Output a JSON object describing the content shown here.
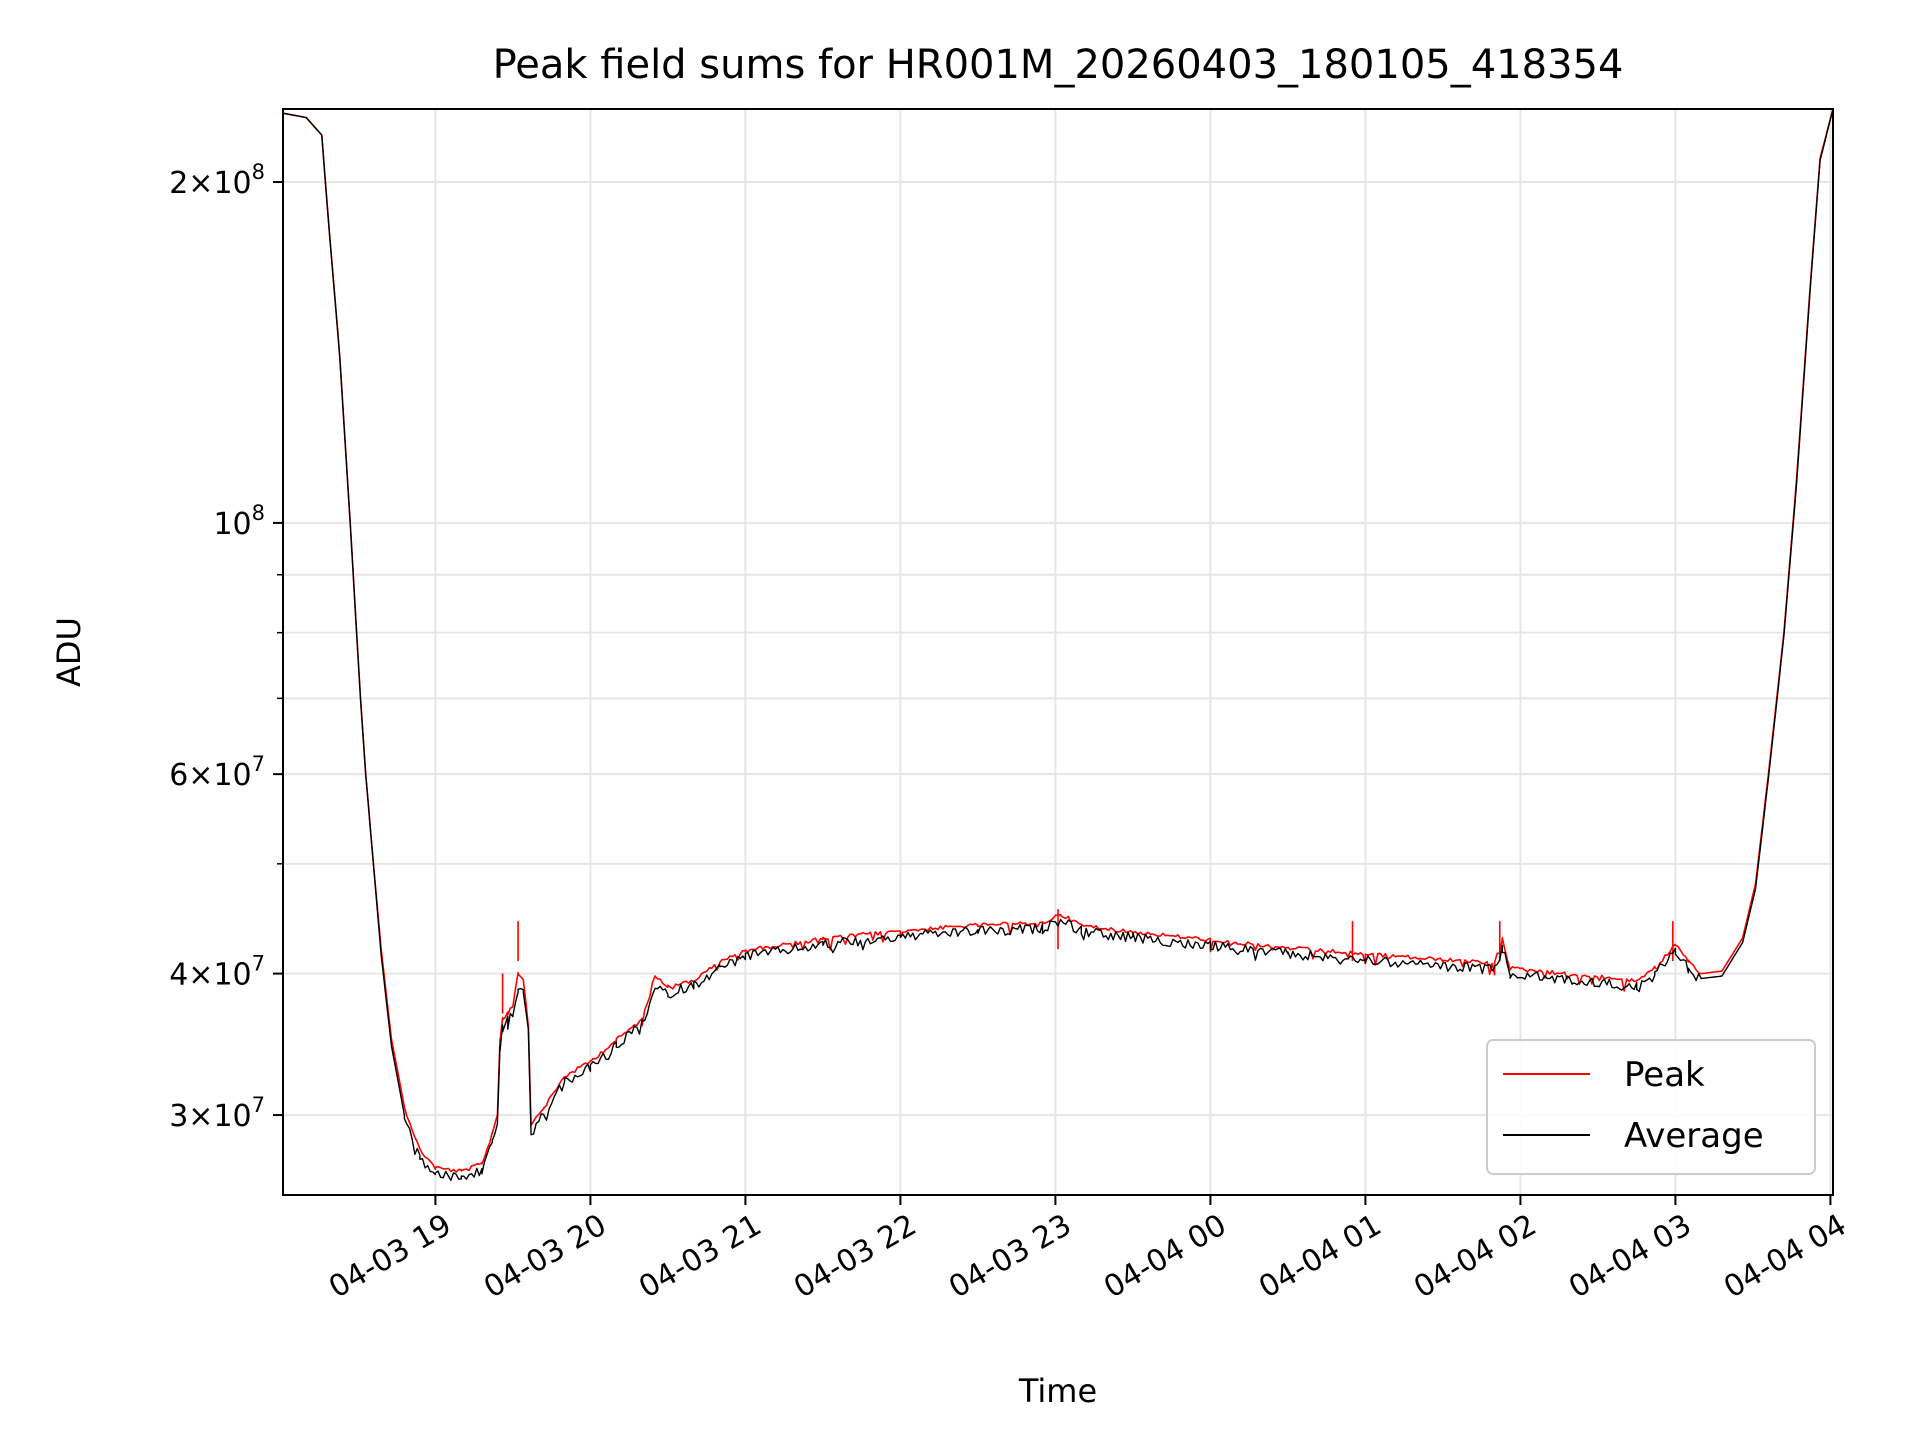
{
  "chart_data": {
    "type": "line",
    "title": "Peak field sums for HR001M_20260403_180105_418354",
    "xlabel": "Time",
    "ylabel": "ADU",
    "yscale": "log",
    "grid": true,
    "legend_position": "lower-right",
    "xlim": [
      "2026-04-03 18:01",
      "2026-04-04 04:01"
    ],
    "ylim": [
      25500000,
      232000000
    ],
    "x_ticks": [
      {
        "t": "2026-04-03 19:00",
        "label": "04-03 19"
      },
      {
        "t": "2026-04-03 20:00",
        "label": "04-03 20"
      },
      {
        "t": "2026-04-03 21:00",
        "label": "04-03 21"
      },
      {
        "t": "2026-04-03 22:00",
        "label": "04-03 22"
      },
      {
        "t": "2026-04-03 23:00",
        "label": "04-03 23"
      },
      {
        "t": "2026-04-04 00:00",
        "label": "04-04 00"
      },
      {
        "t": "2026-04-04 01:00",
        "label": "04-04 01"
      },
      {
        "t": "2026-04-04 02:00",
        "label": "04-04 02"
      },
      {
        "t": "2026-04-04 03:00",
        "label": "04-04 03"
      },
      {
        "t": "2026-04-04 04:00",
        "label": "04-04 04"
      }
    ],
    "y_major_ticks": [
      {
        "v": 30000000,
        "base": "3×10",
        "exp": "7"
      },
      {
        "v": 40000000,
        "base": "4×10",
        "exp": "7"
      },
      {
        "v": 60000000,
        "base": "6×10",
        "exp": "7"
      },
      {
        "v": 100000000,
        "base": "10",
        "exp": "8"
      },
      {
        "v": 200000000,
        "base": "2×10",
        "exp": "8"
      }
    ],
    "y_minor_ticks": [
      50000000,
      70000000,
      80000000,
      90000000
    ],
    "series": [
      {
        "name": "Peak",
        "color": "#ff0000",
        "points": [
          [
            "2026-04-03 18:01",
            230000000
          ],
          [
            "2026-04-03 18:10",
            228000000
          ],
          [
            "2026-04-03 18:16",
            220000000
          ],
          [
            "2026-04-03 18:19",
            180000000
          ],
          [
            "2026-04-03 18:23",
            140000000
          ],
          [
            "2026-04-03 18:27",
            100000000
          ],
          [
            "2026-04-03 18:31",
            70000000
          ],
          [
            "2026-04-03 18:33",
            60000000
          ],
          [
            "2026-04-03 18:36",
            50000000
          ],
          [
            "2026-04-03 18:39",
            42000000
          ],
          [
            "2026-04-03 18:43",
            35000000
          ],
          [
            "2026-04-03 18:48",
            30500000
          ],
          [
            "2026-04-03 18:54",
            28000000
          ],
          [
            "2026-04-03 19:00",
            27000000
          ],
          [
            "2026-04-03 19:10",
            26800000
          ],
          [
            "2026-04-03 19:18",
            27200000
          ],
          [
            "2026-04-03 19:22",
            29000000
          ],
          [
            "2026-04-03 19:24",
            30000000
          ],
          [
            "2026-04-03 19:25",
            35000000
          ],
          [
            "2026-04-03 19:26",
            36500000
          ],
          [
            "2026-04-03 19:28",
            37000000
          ],
          [
            "2026-04-03 19:30",
            37500000
          ],
          [
            "2026-04-03 19:32",
            40000000
          ],
          [
            "2026-04-03 19:34",
            39500000
          ],
          [
            "2026-04-03 19:36",
            36000000
          ],
          [
            "2026-04-03 19:37",
            29500000
          ],
          [
            "2026-04-03 19:42",
            30500000
          ],
          [
            "2026-04-03 19:50",
            32500000
          ],
          [
            "2026-04-03 20:00",
            33500000
          ],
          [
            "2026-04-03 20:10",
            35000000
          ],
          [
            "2026-04-03 20:20",
            36500000
          ],
          [
            "2026-04-03 20:25",
            40000000
          ],
          [
            "2026-04-03 20:30",
            39000000
          ],
          [
            "2026-04-03 20:40",
            39500000
          ],
          [
            "2026-04-03 20:50",
            41000000
          ],
          [
            "2026-04-03 21:00",
            42000000
          ],
          [
            "2026-04-03 21:30",
            43000000
          ],
          [
            "2026-04-03 22:00",
            43700000
          ],
          [
            "2026-04-03 22:30",
            44200000
          ],
          [
            "2026-04-03 22:55",
            44400000
          ],
          [
            "2026-04-03 23:02",
            45200000
          ],
          [
            "2026-04-03 23:10",
            44200000
          ],
          [
            "2026-04-03 23:30",
            43600000
          ],
          [
            "2026-04-04 00:00",
            42900000
          ],
          [
            "2026-04-04 00:30",
            42200000
          ],
          [
            "2026-04-04 01:00",
            41700000
          ],
          [
            "2026-04-04 01:30",
            41200000
          ],
          [
            "2026-04-04 01:50",
            40900000
          ],
          [
            "2026-04-04 01:53",
            43000000
          ],
          [
            "2026-04-04 01:56",
            40500000
          ],
          [
            "2026-04-04 02:20",
            40000000
          ],
          [
            "2026-04-04 02:45",
            39500000
          ],
          [
            "2026-04-04 02:52",
            40500000
          ],
          [
            "2026-04-04 03:00",
            42500000
          ],
          [
            "2026-04-04 03:05",
            41000000
          ],
          [
            "2026-04-04 03:10",
            40000000
          ],
          [
            "2026-04-04 03:18",
            40200000
          ],
          [
            "2026-04-04 03:26",
            43000000
          ],
          [
            "2026-04-04 03:31",
            48000000
          ],
          [
            "2026-04-04 03:36",
            60000000
          ],
          [
            "2026-04-04 03:42",
            80000000
          ],
          [
            "2026-04-04 03:47",
            110000000
          ],
          [
            "2026-04-04 03:52",
            160000000
          ],
          [
            "2026-04-04 03:56",
            210000000
          ],
          [
            "2026-04-04 04:01",
            232000000
          ]
        ],
        "spikes": [
          [
            "2026-04-03 19:32",
            44500000
          ],
          [
            "2026-04-03 19:26",
            40000000
          ],
          [
            "2026-04-03 23:01",
            45600000
          ],
          [
            "2026-04-04 00:55",
            44500000
          ],
          [
            "2026-04-04 01:52",
            44500000
          ],
          [
            "2026-04-04 02:59",
            44500000
          ]
        ]
      },
      {
        "name": "Average",
        "color": "#000000",
        "points": [
          [
            "2026-04-03 18:01",
            230000000
          ],
          [
            "2026-04-03 18:10",
            228000000
          ],
          [
            "2026-04-03 18:16",
            220000000
          ],
          [
            "2026-04-03 18:19",
            180000000
          ],
          [
            "2026-04-03 18:23",
            140000000
          ],
          [
            "2026-04-03 18:27",
            100000000
          ],
          [
            "2026-04-03 18:31",
            70000000
          ],
          [
            "2026-04-03 18:33",
            60000000
          ],
          [
            "2026-04-03 18:36",
            50000000
          ],
          [
            "2026-04-03 18:39",
            41500000
          ],
          [
            "2026-04-03 18:43",
            34500000
          ],
          [
            "2026-04-03 18:48",
            30000000
          ],
          [
            "2026-04-03 18:54",
            27600000
          ],
          [
            "2026-04-03 19:00",
            26700000
          ],
          [
            "2026-04-03 19:10",
            26500000
          ],
          [
            "2026-04-03 19:18",
            26900000
          ],
          [
            "2026-04-03 19:22",
            28500000
          ],
          [
            "2026-04-03 19:24",
            29500000
          ],
          [
            "2026-04-03 19:25",
            34500000
          ],
          [
            "2026-04-03 19:26",
            36000000
          ],
          [
            "2026-04-03 19:28",
            36500000
          ],
          [
            "2026-04-03 19:30",
            37000000
          ],
          [
            "2026-04-03 19:32",
            39000000
          ],
          [
            "2026-04-03 19:34",
            38800000
          ],
          [
            "2026-04-03 19:36",
            35500000
          ],
          [
            "2026-04-03 19:37",
            29000000
          ],
          [
            "2026-04-03 19:42",
            30200000
          ],
          [
            "2026-04-03 19:50",
            32200000
          ],
          [
            "2026-04-03 20:00",
            33200000
          ],
          [
            "2026-04-03 20:10",
            34700000
          ],
          [
            "2026-04-03 20:20",
            36200000
          ],
          [
            "2026-04-03 20:25",
            39000000
          ],
          [
            "2026-04-03 20:30",
            38600000
          ],
          [
            "2026-04-03 20:40",
            39200000
          ],
          [
            "2026-04-03 20:50",
            40600000
          ],
          [
            "2026-04-03 21:00",
            41600000
          ],
          [
            "2026-04-03 21:30",
            42600000
          ],
          [
            "2026-04-03 22:00",
            43300000
          ],
          [
            "2026-04-03 22:30",
            43800000
          ],
          [
            "2026-04-03 22:55",
            44000000
          ],
          [
            "2026-04-03 23:02",
            44800000
          ],
          [
            "2026-04-03 23:10",
            43800000
          ],
          [
            "2026-04-03 23:30",
            43200000
          ],
          [
            "2026-04-04 00:00",
            42500000
          ],
          [
            "2026-04-04 00:30",
            41800000
          ],
          [
            "2026-04-04 01:00",
            41300000
          ],
          [
            "2026-04-04 01:30",
            40800000
          ],
          [
            "2026-04-04 01:50",
            40500000
          ],
          [
            "2026-04-04 01:53",
            42200000
          ],
          [
            "2026-04-04 01:56",
            40100000
          ],
          [
            "2026-04-04 02:20",
            39600000
          ],
          [
            "2026-04-04 02:45",
            39100000
          ],
          [
            "2026-04-04 02:52",
            40100000
          ],
          [
            "2026-04-04 03:00",
            42000000
          ],
          [
            "2026-04-04 03:05",
            40600000
          ],
          [
            "2026-04-04 03:10",
            39600000
          ],
          [
            "2026-04-04 03:18",
            39800000
          ],
          [
            "2026-04-04 03:26",
            42600000
          ],
          [
            "2026-04-04 03:31",
            47500000
          ],
          [
            "2026-04-04 03:36",
            59500000
          ],
          [
            "2026-04-04 03:42",
            79500000
          ],
          [
            "2026-04-04 03:47",
            109000000
          ],
          [
            "2026-04-04 03:52",
            159000000
          ],
          [
            "2026-04-04 03:56",
            209000000
          ],
          [
            "2026-04-04 04:01",
            232000000
          ]
        ]
      }
    ]
  }
}
